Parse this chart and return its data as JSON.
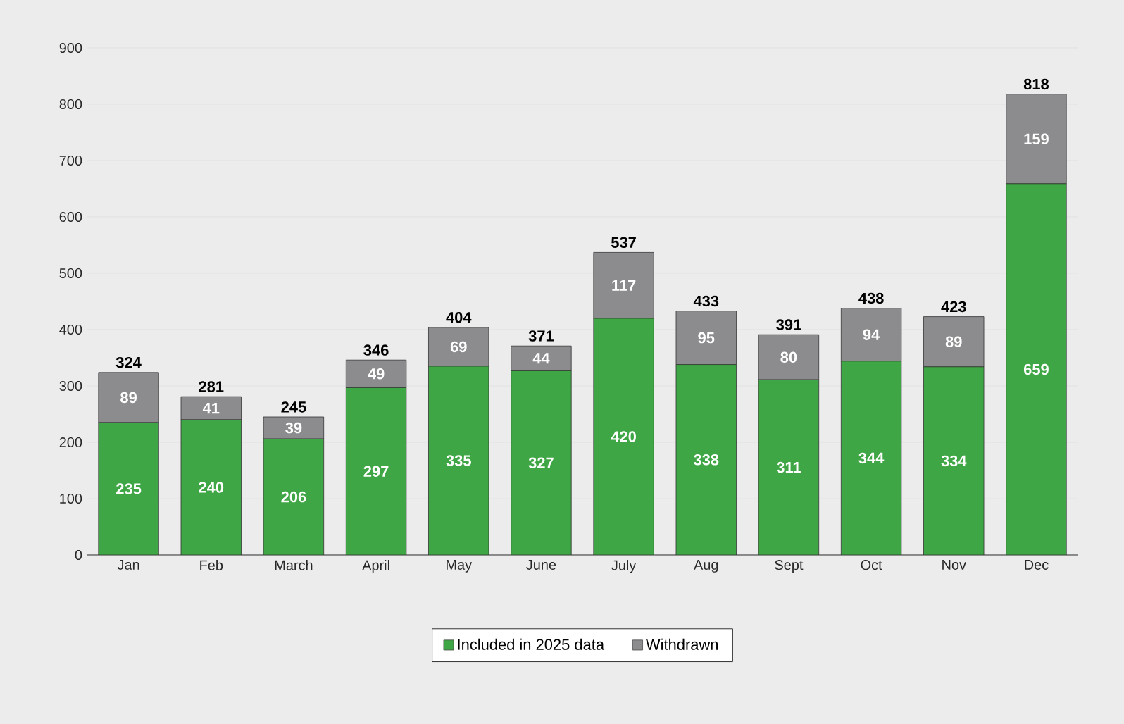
{
  "chart_data": {
    "type": "bar",
    "stacked": true,
    "categories": [
      "Jan",
      "Feb",
      "March",
      "April",
      "May",
      "June",
      "July",
      "Aug",
      "Sept",
      "Oct",
      "Nov",
      "Dec"
    ],
    "series": [
      {
        "name": "Included in 2025 data",
        "color": "#3fa645",
        "values": [
          235,
          240,
          206,
          297,
          335,
          327,
          420,
          338,
          311,
          344,
          334,
          659
        ]
      },
      {
        "name": "Withdrawn",
        "color": "#8c8c8f",
        "values": [
          89,
          41,
          39,
          49,
          69,
          44,
          117,
          95,
          80,
          94,
          89,
          159
        ]
      }
    ],
    "totals": [
      "324",
      "281",
      "245",
      "346",
      "404",
      "371",
      "537",
      "433",
      "391",
      "438",
      "423",
      "818"
    ],
    "ylim": [
      0,
      900
    ],
    "yticks": [
      0,
      100,
      200,
      300,
      400,
      500,
      600,
      700,
      800,
      900
    ],
    "grid": "y",
    "legend": "bottom",
    "data_labels": true
  }
}
